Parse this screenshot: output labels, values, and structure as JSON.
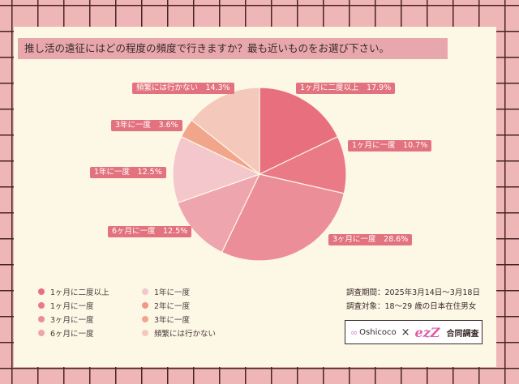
{
  "chart_data": {
    "type": "pie",
    "title": "推し活の遠征にはどの程度の頻度で行きますか？最も近いものをお選び下さい。",
    "slices": [
      {
        "label": "1ヶ月に二度以上",
        "value": 17.9,
        "display": "17.9%",
        "color": "#e8707e"
      },
      {
        "label": "1ヶ月に一度",
        "value": 10.7,
        "display": "10.7%",
        "color": "#ea7a86"
      },
      {
        "label": "3ヶ月に一度",
        "value": 28.6,
        "display": "28.6%",
        "color": "#ec8e98"
      },
      {
        "label": "6ヶ月に一度",
        "value": 12.5,
        "display": "12.5%",
        "color": "#efa5ad"
      },
      {
        "label": "1年に一度",
        "value": 12.5,
        "display": "12.5%",
        "color": "#f3c7cc"
      },
      {
        "label": "3年に一度",
        "value": 3.6,
        "display": "3.6%",
        "color": "#f1a68c"
      },
      {
        "label": "頻繁には行かない",
        "value": 14.3,
        "display": "14.3%",
        "color": "#f5c8bc"
      }
    ],
    "legend": [
      {
        "label": "1ヶ月に二度以上",
        "color": "#e8707e"
      },
      {
        "label": "1年に一度",
        "color": "#f3c7cc"
      },
      {
        "label": "1ヶ月に一度",
        "color": "#ea7a86"
      },
      {
        "label": "2年に一度",
        "color": "#f09a80"
      },
      {
        "label": "3ヶ月に一度",
        "color": "#ec8e98"
      },
      {
        "label": "3年に一度",
        "color": "#f1a68c"
      },
      {
        "label": "6ヶ月に一度",
        "color": "#efa5ad"
      },
      {
        "label": "頻繁には行かない",
        "color": "#f5c8bc"
      }
    ],
    "legend_placement": "bottom-left"
  },
  "survey": {
    "period": "調査期間：2025年3月14日～3月18日",
    "target": "調査対象：18～29 歳の日本在住男女"
  },
  "logos": {
    "oshicoco": "Oshicoco",
    "cross": "×",
    "ez": "ezZ",
    "joint": "合同調査"
  }
}
